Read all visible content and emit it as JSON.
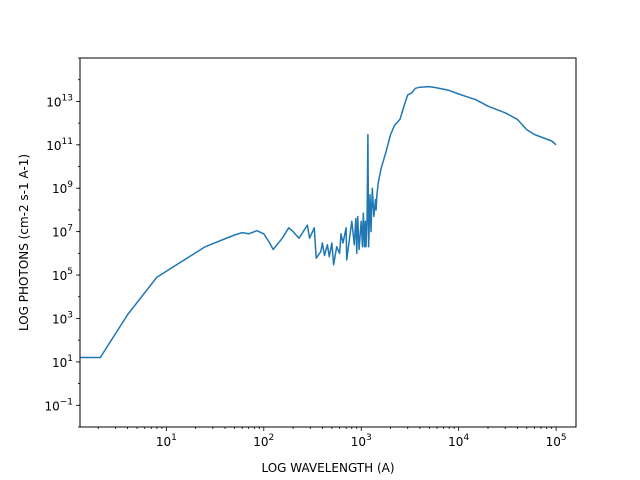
{
  "chart_data": {
    "type": "line",
    "xlabel": "LOG WAVELENGTH (A)",
    "ylabel": "LOG PHOTONS (cm-2 s-1 A-1)",
    "xscale": "log",
    "yscale": "log",
    "xlim": [
      1.3,
      160000
    ],
    "ylim": [
      0.01,
      1000000000000000.0
    ],
    "grid": false,
    "line_color": "#1f77b4",
    "x_ticks": [
      {
        "value": 10,
        "base": "10",
        "exp": "1"
      },
      {
        "value": 100,
        "base": "10",
        "exp": "2"
      },
      {
        "value": 1000,
        "base": "10",
        "exp": "3"
      },
      {
        "value": 10000,
        "base": "10",
        "exp": "4"
      },
      {
        "value": 100000,
        "base": "10",
        "exp": "5"
      }
    ],
    "y_ticks": [
      {
        "value": 0.1,
        "base": "10",
        "exp": "−1"
      },
      {
        "value": 10,
        "base": "10",
        "exp": "1"
      },
      {
        "value": 1000,
        "base": "10",
        "exp": "3"
      },
      {
        "value": 100000,
        "base": "10",
        "exp": "5"
      },
      {
        "value": 10000000,
        "base": "10",
        "exp": "7"
      },
      {
        "value": 1000000000,
        "base": "10",
        "exp": "9"
      },
      {
        "value": 100000000000,
        "base": "10",
        "exp": "11"
      },
      {
        "value": 10000000000000,
        "base": "10",
        "exp": "13"
      }
    ],
    "series": [
      {
        "x": [
          1.3,
          2.1,
          4,
          8,
          10,
          25,
          50,
          60,
          70,
          85,
          100,
          115,
          125,
          155,
          180,
          200,
          230,
          280,
          295,
          330,
          345,
          385,
          400,
          420,
          450,
          470,
          500,
          520,
          560,
          600,
          620,
          650,
          700,
          710,
          800,
          850,
          880,
          900,
          920,
          950,
          1000,
          1030,
          1050,
          1080,
          1100,
          1120,
          1150,
          1170,
          1190,
          1200,
          1230,
          1260,
          1300,
          1350,
          1400,
          1420,
          1450,
          1500,
          1600,
          1800,
          2000,
          2200,
          2500,
          2800,
          3000,
          3300,
          3600,
          4000,
          5000,
          6000,
          8000,
          10000,
          15000,
          20000,
          30000,
          40000,
          50000,
          60000,
          70000,
          90000,
          100000
        ],
        "y": [
          16,
          16,
          1500,
          80000,
          150000,
          2000000,
          7000000,
          9000000,
          8000000,
          11000000,
          8000000,
          3000000,
          1500000,
          5000000,
          15000000,
          10000000,
          5000000,
          20000000,
          5000000,
          15000000,
          600000,
          1200000,
          3000000,
          800000,
          2500000,
          700000,
          3000000,
          300000,
          2000000,
          1000000,
          8000000,
          3000000,
          15000000,
          500000,
          30000000,
          2500000,
          40000000,
          1000000,
          50000000,
          1500000,
          30000000,
          2000000,
          70000000,
          2000000,
          30000000,
          2000000,
          50000000,
          300000000000,
          2000000,
          5000000,
          500000000,
          10000000,
          1000000000,
          50000000,
          300000000,
          100000000,
          500000000,
          2000000000,
          8000000000,
          50000000000,
          300000000000,
          800000000000,
          1500000000000,
          8000000000000,
          20000000000000,
          25000000000000,
          40000000000000,
          45000000000000,
          48000000000000,
          42000000000000,
          32000000000000,
          22000000000000,
          12000000000000,
          6000000000000,
          3000000000000,
          1500000000000,
          500000000000,
          300000000000,
          230000000000,
          150000000000,
          100000000000
        ]
      }
    ]
  }
}
